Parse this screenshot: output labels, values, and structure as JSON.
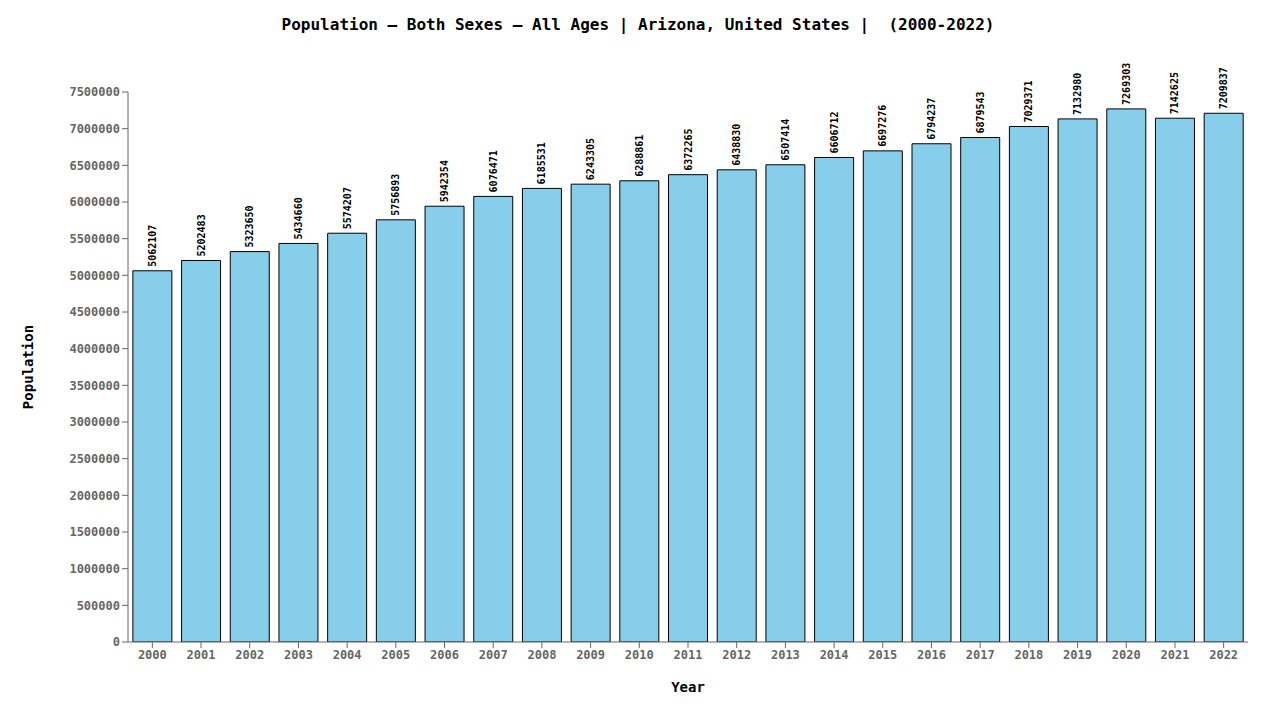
{
  "chart_data": {
    "type": "bar",
    "title": "Population – Both Sexes – All Ages | Arizona, United States |  (2000-2022)",
    "xlabel": "Year",
    "ylabel": "Population",
    "categories": [
      "2000",
      "2001",
      "2002",
      "2003",
      "2004",
      "2005",
      "2006",
      "2007",
      "2008",
      "2009",
      "2010",
      "2011",
      "2012",
      "2013",
      "2014",
      "2015",
      "2016",
      "2017",
      "2018",
      "2019",
      "2020",
      "2021",
      "2022"
    ],
    "values": [
      5062107,
      5202483,
      5323650,
      5434660,
      5574207,
      5756893,
      5942354,
      6076471,
      6185531,
      6243305,
      6288861,
      6372265,
      6438830,
      6507414,
      6606712,
      6697276,
      6794237,
      6879543,
      7029371,
      7132980,
      7269303,
      7142625,
      7209837
    ],
    "color": "#87CEEB",
    "ylim": [
      0,
      7500000
    ],
    "yticks": [
      0,
      500000,
      1000000,
      1500000,
      2000000,
      2500000,
      3000000,
      3500000,
      4000000,
      4500000,
      5000000,
      5500000,
      6000000,
      6500000,
      7000000,
      7500000
    ],
    "grid": false,
    "data_labels": true
  }
}
